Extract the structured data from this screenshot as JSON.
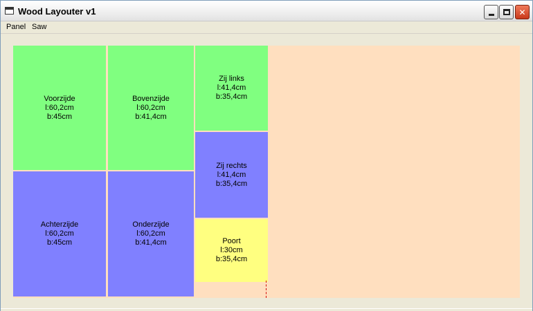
{
  "window": {
    "title": "Wood Layouter v1"
  },
  "menu": {
    "items": [
      "Panel",
      "Saw"
    ]
  },
  "colors": {
    "sheet": "#ffdfbf",
    "green": "#80ff80",
    "blue": "#8080ff",
    "yellow": "#ffff80",
    "cut_line": "#d00000"
  },
  "pieces": [
    {
      "name": "Voorzijde",
      "length": "l:60,2cm",
      "width": "b:45cm",
      "color": "green"
    },
    {
      "name": "Bovenzijde",
      "length": "l:60,2cm",
      "width": "b:41,4cm",
      "color": "green"
    },
    {
      "name": "Zij links",
      "length": "l:41,4cm",
      "width": "b:35,4cm",
      "color": "green"
    },
    {
      "name": "Zij rechts",
      "length": "l:41,4cm",
      "width": "b:35,4cm",
      "color": "blue"
    },
    {
      "name": "Achterzijde",
      "length": "l:60,2cm",
      "width": "b:45cm",
      "color": "blue"
    },
    {
      "name": "Onderzijde",
      "length": "l:60,2cm",
      "width": "b:41,4cm",
      "color": "blue"
    },
    {
      "name": "Poort",
      "length": "l:30cm",
      "width": "b:35,4cm",
      "color": "yellow"
    }
  ]
}
